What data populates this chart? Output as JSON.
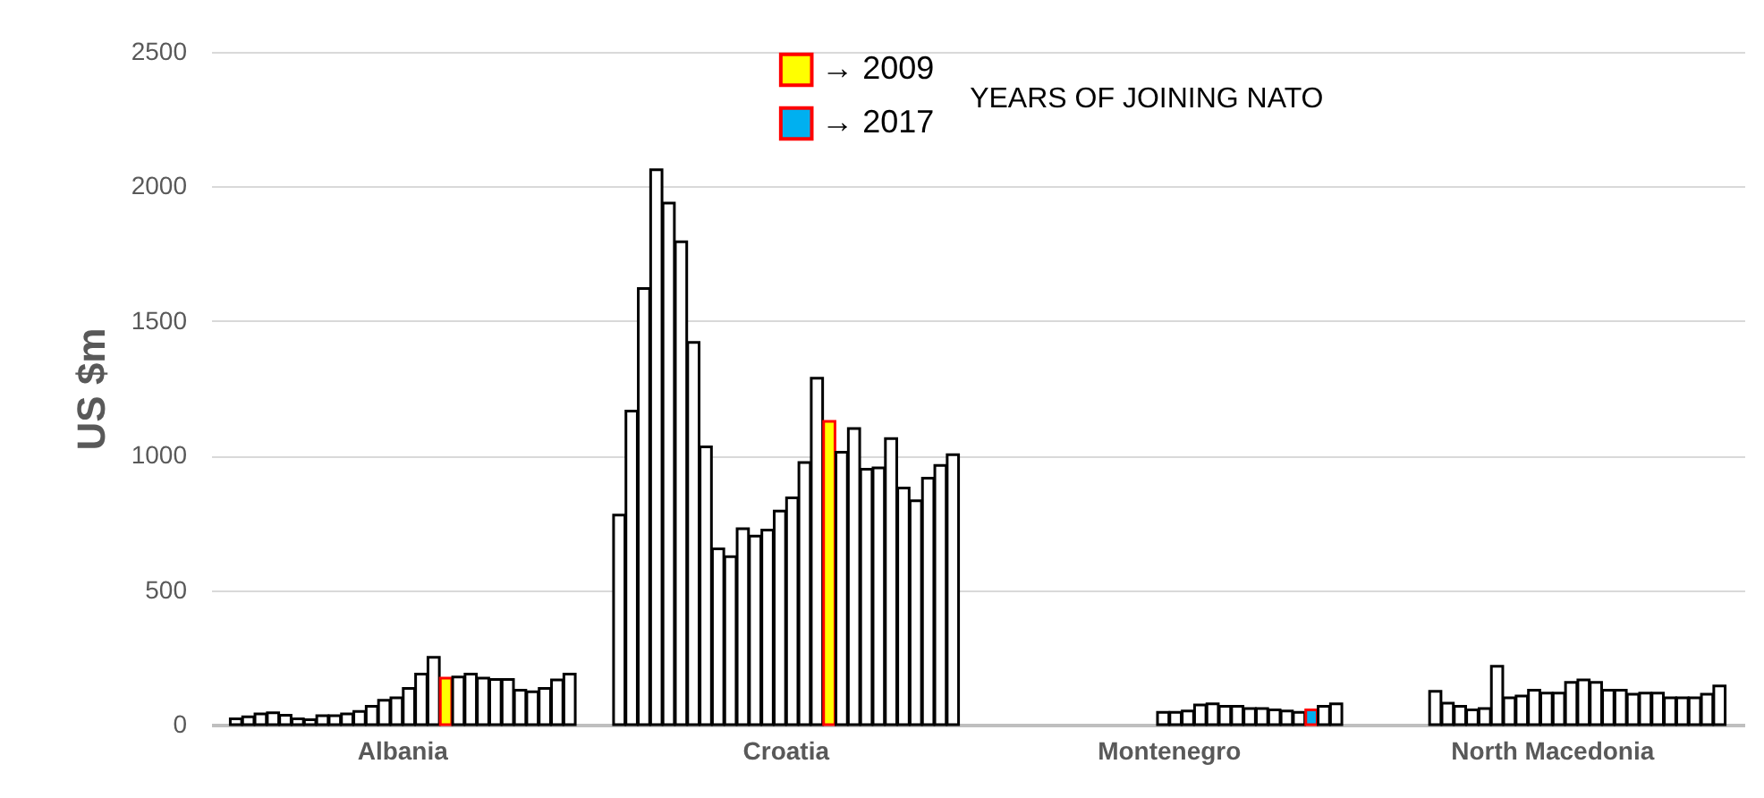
{
  "chart_data": {
    "type": "bar",
    "ylabel": "US $m",
    "legend_title": "YEARS OF JOINING NATO",
    "legend": "top",
    "grid": "y",
    "categories": [
      "Albania",
      "Croatia",
      "Montenegro",
      "North Macedonia"
    ],
    "ylim": [
      0,
      2500
    ],
    "yticks": [
      0,
      500,
      1000,
      1500,
      2000,
      2500
    ],
    "series": [
      {
        "color": "#ffffff",
        "values": [
          22,
          779,
          null,
          null
        ]
      },
      {
        "color": "#ffffff",
        "values": [
          29,
          1165,
          null,
          null
        ]
      },
      {
        "color": "#ffffff",
        "values": [
          40,
          1621,
          null,
          null
        ]
      },
      {
        "color": "#ffffff",
        "values": [
          44,
          2062,
          null,
          null
        ]
      },
      {
        "color": "#ffffff",
        "values": [
          35,
          1938,
          null,
          124
        ]
      },
      {
        "color": "#ffffff",
        "values": [
          22,
          1794,
          null,
          80
        ]
      },
      {
        "color": "#ffffff",
        "values": [
          18,
          1420,
          null,
          68
        ]
      },
      {
        "color": "#ffffff",
        "values": [
          33,
          1032,
          null,
          55
        ]
      },
      {
        "color": "#ffffff",
        "values": [
          33,
          653,
          null,
          60
        ]
      },
      {
        "color": "#ffffff",
        "values": [
          40,
          624,
          null,
          217
        ]
      },
      {
        "color": "#ffffff",
        "values": [
          49,
          728,
          null,
          100
        ]
      },
      {
        "color": "#ffffff",
        "values": [
          68,
          701,
          null,
          106
        ]
      },
      {
        "color": "#ffffff",
        "values": [
          91,
          723,
          null,
          128
        ]
      },
      {
        "color": "#ffffff",
        "values": [
          100,
          794,
          46,
          117
        ]
      },
      {
        "color": "#ffffff",
        "values": [
          135,
          843,
          46,
          117
        ]
      },
      {
        "color": "#ffffff",
        "values": [
          188,
          974,
          51,
          157
        ]
      },
      {
        "color": "#ffffff",
        "values": [
          250,
          1287,
          73,
          166
        ]
      },
      {
        "name": "→ 2009",
        "color": "#ffff00",
        "colors": [
          "#ffff00",
          "#ffff00",
          "#ffffff",
          "#ffffff"
        ],
        "values": [
          173,
          1127,
          77,
          157
        ]
      },
      {
        "color": "#ffffff",
        "values": [
          177,
          1012,
          68,
          128
        ]
      },
      {
        "color": "#ffffff",
        "values": [
          188,
          1100,
          68,
          128
        ]
      },
      {
        "color": "#ffffff",
        "values": [
          173,
          949,
          60,
          113
        ]
      },
      {
        "color": "#ffffff",
        "values": [
          168,
          954,
          60,
          117
        ]
      },
      {
        "color": "#ffffff",
        "values": [
          168,
          1063,
          55,
          117
        ]
      },
      {
        "color": "#ffffff",
        "values": [
          128,
          879,
          51,
          100
        ]
      },
      {
        "color": "#ffffff",
        "values": [
          122,
          832,
          46,
          100
        ]
      },
      {
        "name": "→ 2017",
        "color": "#00b0f0",
        "colors": [
          "#ffffff",
          "#ffffff",
          "#00b0f0",
          "#ffffff"
        ],
        "values": [
          135,
          916,
          55,
          100
        ]
      },
      {
        "color": "#ffffff",
        "values": [
          166,
          963,
          68,
          113
        ]
      },
      {
        "color": "#ffffff",
        "values": [
          188,
          1003,
          77,
          144
        ]
      }
    ]
  }
}
